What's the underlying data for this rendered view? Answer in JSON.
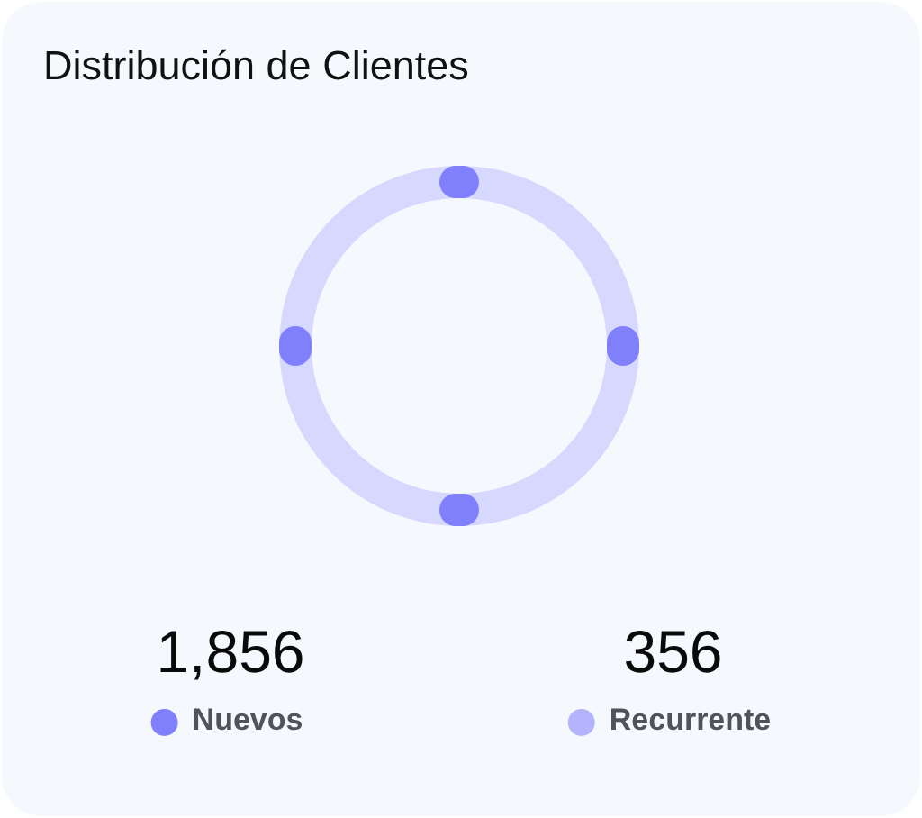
{
  "chart_data": {
    "type": "other",
    "title": "Distribución de Clientes",
    "categories": [
      "Nuevos",
      "Recurrente"
    ],
    "values": [
      1856,
      356
    ],
    "value_labels": [
      "1,856",
      "356"
    ],
    "colors": [
      "#8080fc",
      "#b4b4fc"
    ]
  }
}
